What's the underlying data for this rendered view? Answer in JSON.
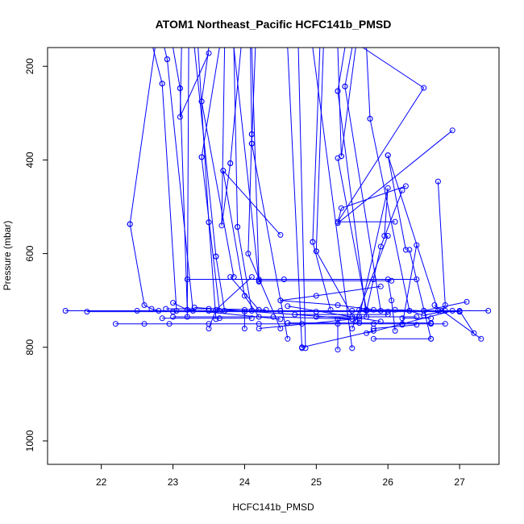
{
  "chart_data": {
    "type": "line",
    "title": "ATOM1 Northeast_Pacific HCFC141b_PMSD",
    "xlabel": "HCFC141b_PMSD",
    "ylabel": "Pressure (mbar)",
    "xlim": [
      21.25,
      27.55
    ],
    "ylim": [
      1050,
      160
    ],
    "y_reversed": true,
    "grid": false,
    "x_ticks": [
      "22",
      "23",
      "24",
      "25",
      "26",
      "27"
    ],
    "y_ticks": [
      "200",
      "400",
      "600",
      "800",
      "1000"
    ],
    "series_color": "#0000ff",
    "markers": "open-circle",
    "series": [
      {
        "points": [
          [
            22.4,
            537
          ],
          [
            22.75,
            160
          ]
        ]
      },
      {
        "points": [
          [
            22.4,
            537
          ],
          [
            22.6,
            710
          ],
          [
            22.7,
            718
          ],
          [
            22.8,
            722
          ]
        ]
      },
      {
        "points": [
          [
            22.85,
            237
          ],
          [
            22.72,
            160
          ]
        ]
      },
      {
        "points": [
          [
            22.85,
            237
          ],
          [
            23.05,
            722
          ]
        ]
      },
      {
        "points": [
          [
            22.92,
            185
          ],
          [
            22.88,
            160
          ]
        ]
      },
      {
        "points": [
          [
            22.92,
            185
          ],
          [
            23.28,
            722
          ]
        ]
      },
      {
        "points": [
          [
            23.1,
            247
          ],
          [
            23.0,
            160
          ]
        ]
      },
      {
        "points": [
          [
            23.1,
            247
          ],
          [
            23.2,
            720
          ]
        ]
      },
      {
        "points": [
          [
            23.2,
            735
          ],
          [
            23.22,
            160
          ]
        ]
      },
      {
        "points": [
          [
            23.4,
            275
          ],
          [
            23.5,
            160
          ]
        ]
      },
      {
        "points": [
          [
            23.4,
            275
          ],
          [
            23.85,
            650
          ]
        ]
      },
      {
        "points": [
          [
            23.5,
            172
          ],
          [
            23.1,
            308
          ],
          [
            23.12,
            160
          ]
        ]
      },
      {
        "points": [
          [
            23.4,
            394
          ],
          [
            23.65,
            160
          ]
        ]
      },
      {
        "points": [
          [
            23.4,
            394
          ],
          [
            23.65,
            722
          ]
        ]
      },
      {
        "points": [
          [
            23.6,
            606
          ],
          [
            23.3,
            160
          ]
        ]
      },
      {
        "points": [
          [
            23.6,
            606
          ],
          [
            23.72,
            722
          ]
        ]
      },
      {
        "points": [
          [
            23.5,
            533
          ],
          [
            23.35,
            160
          ]
        ]
      },
      {
        "points": [
          [
            23.5,
            533
          ],
          [
            23.6,
            740
          ]
        ]
      },
      {
        "points": [
          [
            23.8,
            407
          ],
          [
            23.95,
            160
          ]
        ]
      },
      {
        "points": [
          [
            23.8,
            407
          ],
          [
            23.68,
            540
          ],
          [
            23.72,
            160
          ]
        ]
      },
      {
        "points": [
          [
            23.9,
            543
          ],
          [
            23.85,
            160
          ]
        ]
      },
      {
        "points": [
          [
            23.9,
            543
          ],
          [
            24.1,
            722
          ]
        ]
      },
      {
        "points": [
          [
            23.7,
            423
          ],
          [
            24.5,
            560
          ]
        ]
      },
      {
        "points": [
          [
            23.7,
            423
          ],
          [
            24.0,
            690
          ],
          [
            24.2,
            735
          ]
        ]
      },
      {
        "points": [
          [
            24.1,
            345
          ],
          [
            24.08,
            160
          ]
        ]
      },
      {
        "points": [
          [
            24.1,
            345
          ],
          [
            24.05,
            600
          ],
          [
            24.5,
            760
          ]
        ]
      },
      {
        "points": [
          [
            24.1,
            365
          ],
          [
            24.6,
            782
          ]
        ]
      },
      {
        "points": [
          [
            24.1,
            365
          ],
          [
            24.15,
            160
          ]
        ]
      },
      {
        "points": [
          [
            23.85,
            160
          ],
          [
            24.2,
            660
          ]
        ]
      },
      {
        "points": [
          [
            24.1,
            160
          ],
          [
            24.2,
            655
          ]
        ]
      },
      {
        "points": [
          [
            23.8,
            650
          ],
          [
            24.2,
            720
          ]
        ]
      },
      {
        "points": [
          [
            23.5,
            760
          ],
          [
            23.6,
            720
          ],
          [
            24.1,
            650
          ]
        ]
      },
      {
        "points": [
          [
            24.6,
            160
          ],
          [
            24.8,
            802
          ]
        ]
      },
      {
        "points": [
          [
            24.75,
            160
          ],
          [
            24.85,
            802
          ]
        ]
      },
      {
        "points": [
          [
            25.5,
            802
          ],
          [
            24.95,
            160
          ]
        ]
      },
      {
        "points": [
          [
            24.95,
            575
          ],
          [
            25.05,
            160
          ]
        ]
      },
      {
        "points": [
          [
            24.95,
            575
          ],
          [
            25.2,
            720
          ]
        ]
      },
      {
        "points": [
          [
            25.0,
            595
          ],
          [
            25.1,
            160
          ]
        ]
      },
      {
        "points": [
          [
            25.0,
            595
          ],
          [
            25.55,
            745
          ]
        ]
      },
      {
        "points": [
          [
            25.3,
            253
          ],
          [
            25.4,
            160
          ]
        ]
      },
      {
        "points": [
          [
            25.3,
            253
          ],
          [
            25.7,
            735
          ]
        ]
      },
      {
        "points": [
          [
            25.35,
            392
          ],
          [
            25.3,
            160
          ]
        ]
      },
      {
        "points": [
          [
            25.35,
            392
          ],
          [
            25.55,
            160
          ]
        ]
      },
      {
        "points": [
          [
            25.3,
            396
          ],
          [
            25.7,
            720
          ]
        ]
      },
      {
        "points": [
          [
            25.75,
            312
          ],
          [
            25.7,
            160
          ]
        ]
      },
      {
        "points": [
          [
            25.75,
            312
          ],
          [
            26.3,
            722
          ]
        ]
      },
      {
        "points": [
          [
            25.4,
            243
          ],
          [
            25.5,
            160
          ]
        ]
      },
      {
        "points": [
          [
            25.4,
            243
          ],
          [
            25.9,
            722
          ]
        ]
      },
      {
        "points": [
          [
            25.65,
            160
          ],
          [
            26.5,
            246
          ],
          [
            25.3,
            532
          ],
          [
            26.1,
            532
          ]
        ]
      },
      {
        "points": [
          [
            26.9,
            337
          ],
          [
            25.3,
            535
          ],
          [
            25.35,
            503
          ],
          [
            26.25,
            456
          ]
        ]
      },
      {
        "points": [
          [
            26.0,
            390
          ],
          [
            26.25,
            592
          ]
        ]
      },
      {
        "points": [
          [
            26.0,
            390
          ],
          [
            26.7,
            722
          ]
        ]
      },
      {
        "points": [
          [
            26.2,
            465
          ],
          [
            25.9,
            585
          ],
          [
            25.7,
            722
          ]
        ]
      },
      {
        "points": [
          [
            26.7,
            446
          ],
          [
            26.8,
            710
          ],
          [
            26.75,
            722
          ]
        ]
      },
      {
        "points": [
          [
            26.3,
            592
          ],
          [
            26.6,
            782
          ]
        ]
      },
      {
        "points": [
          [
            26.4,
            582
          ],
          [
            26.2,
            752
          ]
        ]
      },
      {
        "points": [
          [
            25.95,
            562
          ],
          [
            26.0,
            460
          ],
          [
            25.6,
            735
          ]
        ]
      },
      {
        "points": [
          [
            26.0,
            562
          ],
          [
            25.5,
            760
          ]
        ]
      },
      {
        "points": [
          [
            26.0,
            655
          ],
          [
            26.05,
            700
          ],
          [
            26.1,
            765
          ]
        ]
      },
      {
        "points": [
          [
            27.1,
            703
          ],
          [
            26.5,
            722
          ]
        ]
      },
      {
        "points": [
          [
            27.2,
            770
          ],
          [
            27.0,
            722
          ]
        ]
      },
      {
        "points": [
          [
            26.65,
            710
          ],
          [
            27.3,
            782
          ]
        ]
      },
      {
        "points": [
          [
            25.8,
            782
          ],
          [
            26.6,
            782
          ]
        ]
      },
      {
        "points": [
          [
            25.7,
            770
          ],
          [
            26.9,
            722
          ]
        ]
      },
      {
        "points": [
          [
            23.2,
            655
          ],
          [
            25.8,
            655
          ]
        ]
      },
      {
        "points": [
          [
            24.2,
            658
          ],
          [
            26.05,
            658
          ]
        ]
      },
      {
        "points": [
          [
            24.55,
            655
          ],
          [
            26.4,
            655
          ]
        ]
      },
      {
        "points": [
          [
            21.5,
            722
          ],
          [
            22.5,
            722
          ],
          [
            23.5,
            722
          ],
          [
            24.5,
            722
          ],
          [
            25.5,
            722
          ],
          [
            26.5,
            722
          ],
          [
            27.4,
            722
          ]
        ]
      },
      {
        "points": [
          [
            21.8,
            724
          ],
          [
            23.0,
            724
          ],
          [
            24.0,
            724
          ],
          [
            25.0,
            724
          ],
          [
            26.0,
            724
          ],
          [
            27.0,
            724
          ]
        ]
      },
      {
        "points": [
          [
            22.2,
            750
          ],
          [
            22.6,
            750
          ],
          [
            22.95,
            750
          ],
          [
            23.5,
            750
          ],
          [
            24.2,
            750
          ],
          [
            24.8,
            750
          ],
          [
            25.3,
            750
          ],
          [
            25.8,
            750
          ],
          [
            26.2,
            750
          ],
          [
            26.6,
            750
          ],
          [
            26.8,
            750
          ]
        ]
      },
      {
        "points": [
          [
            24.5,
            700
          ],
          [
            25.3,
            710
          ],
          [
            25.8,
            720
          ]
        ]
      },
      {
        "points": [
          [
            24.5,
            700
          ],
          [
            25.0,
            690
          ],
          [
            25.9,
            670
          ]
        ]
      },
      {
        "points": [
          [
            23.0,
            735
          ],
          [
            24.4,
            735
          ],
          [
            25.5,
            740
          ]
        ]
      },
      {
        "points": [
          [
            23.0,
            705
          ],
          [
            23.2,
            720
          ],
          [
            24.5,
            740
          ]
        ]
      },
      {
        "points": [
          [
            23.3,
            715
          ],
          [
            25.6,
            740
          ]
        ]
      },
      {
        "points": [
          [
            22.9,
            718
          ],
          [
            23.5,
            718
          ],
          [
            24.3,
            720
          ]
        ]
      },
      {
        "points": [
          [
            25.0,
            735
          ],
          [
            26.4,
            735
          ]
        ]
      },
      {
        "points": [
          [
            24.6,
            712
          ],
          [
            25.5,
            735
          ],
          [
            25.9,
            745
          ]
        ]
      },
      {
        "points": [
          [
            24.2,
            760
          ],
          [
            25.5,
            740
          ]
        ]
      },
      {
        "points": [
          [
            24.0,
            720
          ],
          [
            24.0,
            760
          ]
        ]
      },
      {
        "points": [
          [
            24.6,
            748
          ],
          [
            25.6,
            748
          ],
          [
            26.6,
            748
          ]
        ]
      },
      {
        "points": [
          [
            24.7,
            730
          ],
          [
            26.0,
            730
          ]
        ]
      },
      {
        "points": [
          [
            22.85,
            738
          ],
          [
            23.65,
            738
          ],
          [
            24.1,
            738
          ]
        ]
      },
      {
        "points": [
          [
            25.3,
            805
          ],
          [
            25.3,
            740
          ]
        ]
      },
      {
        "points": [
          [
            24.8,
            800
          ],
          [
            25.8,
            765
          ]
        ]
      },
      {
        "points": [
          [
            25.6,
            720
          ],
          [
            26.1,
            720
          ],
          [
            26.5,
            722
          ],
          [
            27.0,
            724
          ]
        ]
      },
      {
        "points": [
          [
            26.2,
            738
          ],
          [
            26.6,
            738
          ]
        ]
      },
      {
        "points": [
          [
            26.3,
            722
          ],
          [
            26.5,
            732
          ],
          [
            26.8,
            722
          ]
        ]
      },
      {
        "points": [
          [
            25.8,
            760
          ],
          [
            26.4,
            752
          ]
        ]
      }
    ]
  }
}
